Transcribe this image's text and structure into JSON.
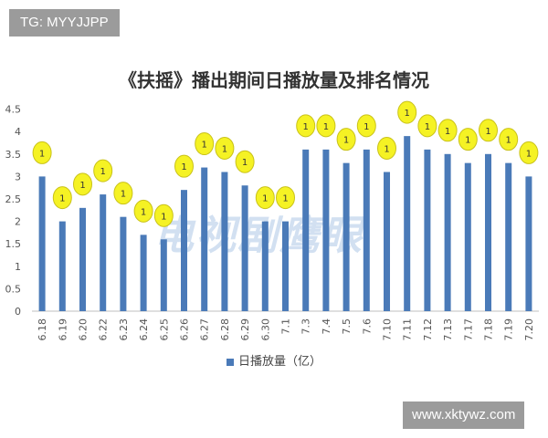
{
  "watermark_top": "TG: MYYJJPP",
  "watermark_bottom": "www.xktywz.com",
  "watermark_center": "电视剧鹰眼",
  "colors": {
    "bar": "#4a7ab8",
    "marker": "#f5f224",
    "marker_border": "#c9c21a",
    "axis": "#bfbfbf"
  },
  "chart_data": {
    "type": "bar",
    "title": "《扶摇》播出期间日播放量及排名情况",
    "categories": [
      "6.18",
      "6.19",
      "6.20",
      "6.22",
      "6.23",
      "6.24",
      "6.25",
      "6.26",
      "6.27",
      "6.28",
      "6.29",
      "6.30",
      "7.1",
      "7.3",
      "7.4",
      "7.5",
      "7.6",
      "7.10",
      "7.11",
      "7.12",
      "7.13",
      "7.17",
      "7.18",
      "7.19",
      "7.20"
    ],
    "series": [
      {
        "name": "日播放量（亿）",
        "values": [
          3.0,
          2.0,
          2.3,
          2.6,
          2.1,
          1.7,
          1.6,
          2.7,
          3.2,
          3.1,
          2.8,
          2.0,
          2.0,
          3.6,
          3.6,
          3.3,
          3.6,
          3.1,
          3.9,
          3.6,
          3.5,
          3.3,
          3.5,
          3.3,
          3.0
        ]
      }
    ],
    "rank_labels": [
      "1",
      "1",
      "1",
      "1",
      "1",
      "1",
      "1",
      "1",
      "1",
      "1",
      "1",
      "1",
      "1",
      "1",
      "1",
      "1",
      "1",
      "1",
      "1",
      "1",
      "1",
      "1",
      "1",
      "1",
      "1"
    ],
    "y_ticks": [
      "0",
      "0.5",
      "1",
      "1.5",
      "2",
      "2.5",
      "3",
      "3.5",
      "4",
      "4.5"
    ],
    "ylim": [
      0,
      4.5
    ],
    "legend": "bottom",
    "grid": false
  }
}
